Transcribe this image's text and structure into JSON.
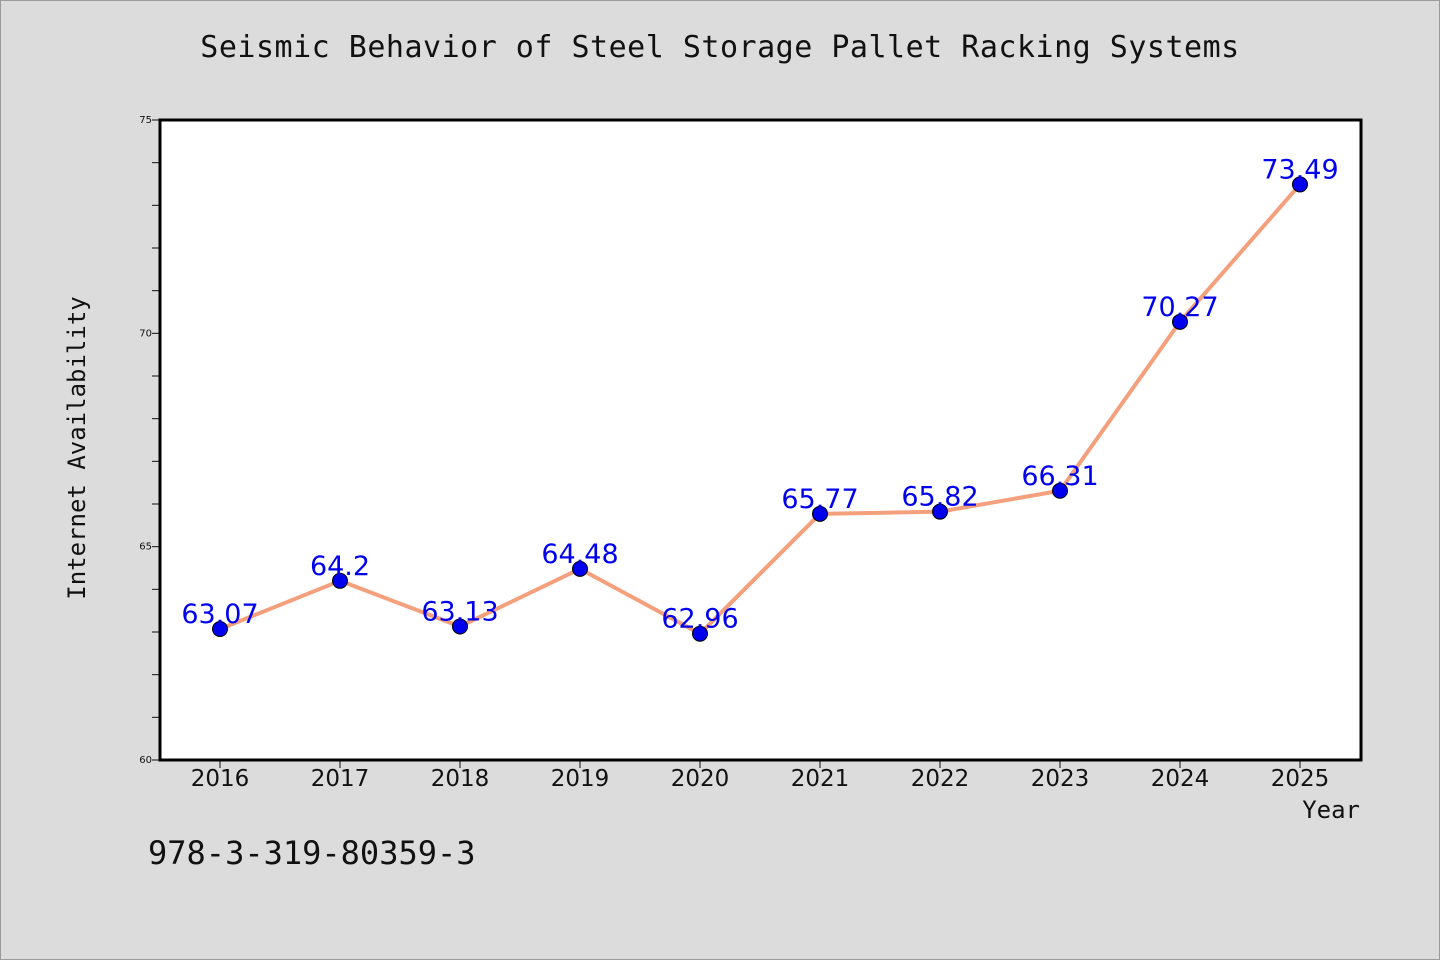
{
  "chart_data": {
    "type": "line",
    "title": "Seismic Behavior of Steel Storage Pallet Racking Systems",
    "xlabel": "Year",
    "ylabel": "Internet Availability",
    "x": [
      "2016",
      "2017",
      "2018",
      "2019",
      "2020",
      "2021",
      "2022",
      "2023",
      "2024",
      "2025"
    ],
    "series": [
      {
        "values": [
          63.07,
          64.2,
          63.13,
          64.48,
          62.96,
          65.77,
          65.82,
          66.31,
          70.27,
          73.49
        ],
        "labels": [
          "63.07",
          "64.2",
          "63.13",
          "64.48",
          "62.96",
          "65.77",
          "65.82",
          "66.31",
          "70.27",
          "73.49"
        ]
      }
    ],
    "ylim": [
      60,
      75
    ],
    "yticks": [
      "60",
      "65",
      "70",
      "75"
    ],
    "grid": false,
    "line_color": "#f4a07c",
    "marker_color": "#0000ee",
    "label_color": "#0000ee"
  },
  "annotation": {
    "isbn": "978-3-319-80359-3"
  }
}
